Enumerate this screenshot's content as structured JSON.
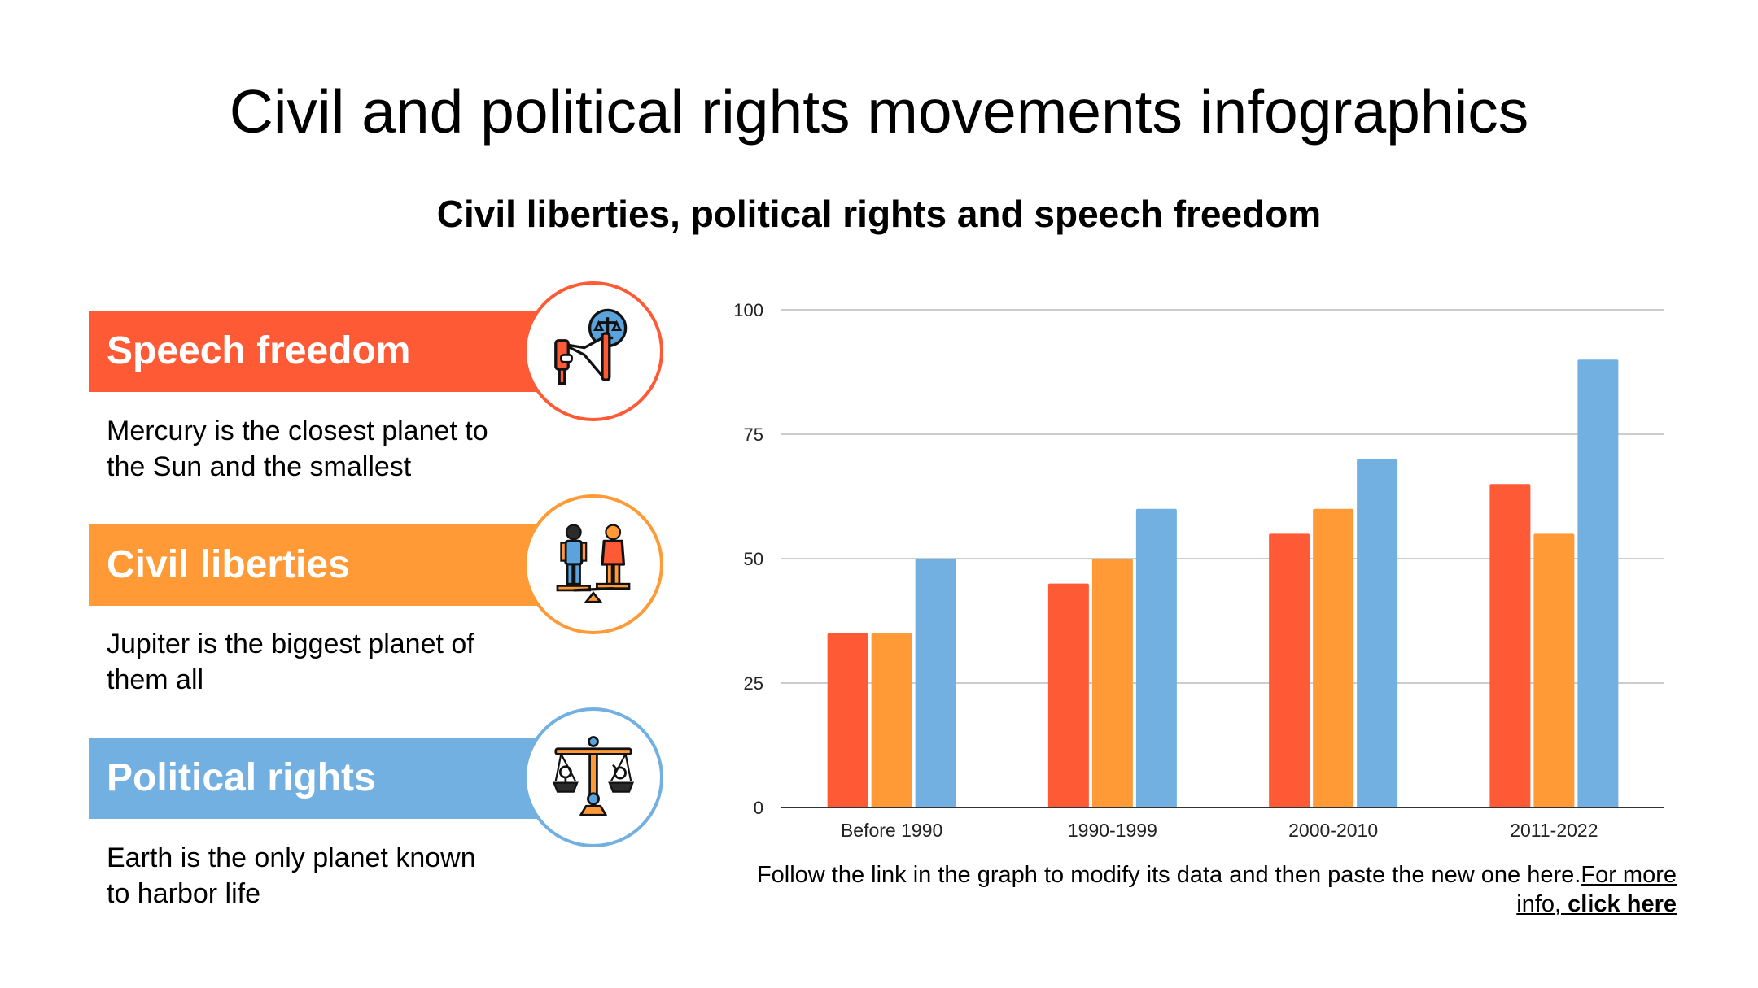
{
  "title": "Civil and political rights movements infographics",
  "subtitle": "Civil liberties, political rights and speech freedom",
  "items": [
    {
      "heading": "Speech freedom",
      "text_line1": "Mercury is the closest planet to",
      "text_line2": "the Sun and the smallest",
      "color": "#ff5a36",
      "icon": "megaphone-justice-icon"
    },
    {
      "heading": "Civil liberties",
      "text_line1": "Jupiter is the biggest planet of",
      "text_line2": "them all",
      "color": "#ff9a36",
      "icon": "people-balance-icon"
    },
    {
      "heading": "Political rights",
      "text_line1": "Earth is the only planet known",
      "text_line2": "to harbor life",
      "color": "#72b0e2",
      "icon": "gender-scale-icon"
    }
  ],
  "chart_data": {
    "type": "bar",
    "categories": [
      "Before 1990",
      "1990-1999",
      "2000-2010",
      "2011-2022"
    ],
    "series": [
      {
        "name": "Speech freedom",
        "color": "#ff5a36",
        "values": [
          35,
          45,
          55,
          65
        ]
      },
      {
        "name": "Civil liberties",
        "color": "#ff9a36",
        "values": [
          35,
          50,
          60,
          55
        ]
      },
      {
        "name": "Political rights",
        "color": "#72b0e2",
        "values": [
          50,
          60,
          70,
          90
        ]
      }
    ],
    "ylim": [
      0,
      100
    ],
    "yticks": [
      0,
      25,
      50,
      75,
      100
    ],
    "grid": true,
    "title": "",
    "xlabel": "",
    "ylabel": ""
  },
  "footnote": {
    "text": "Follow the link in the graph to modify its data and then paste the new one here.",
    "link_text": "For more info, ",
    "link_bold": "click here"
  }
}
